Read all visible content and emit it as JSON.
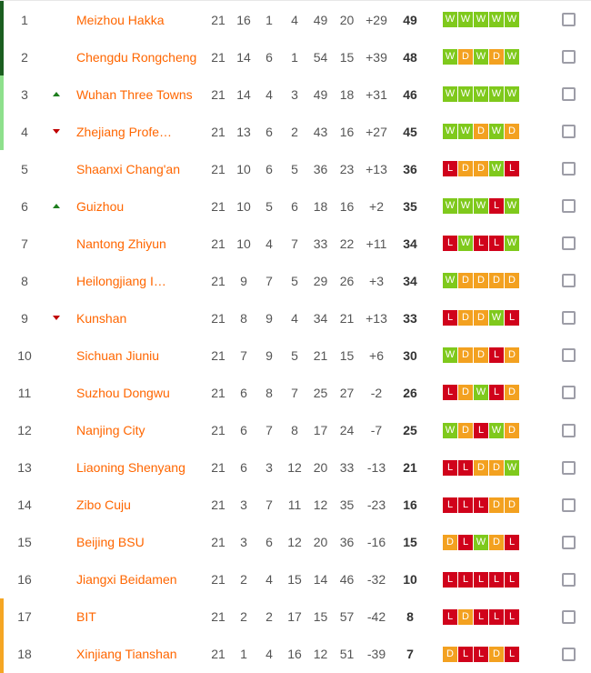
{
  "colors": {
    "team_link": "#ff6600",
    "number_text": "#555555",
    "points_text": "#333333",
    "win_badge": "#7fc91c",
    "draw_badge": "#f3a120",
    "loss_badge": "#d0021b",
    "promotion_zone": "#1b5e20",
    "playoff_zone": "#8ee08c",
    "relegation_zone": "#f5a623",
    "rank_up_arrow": "#1e7e1e",
    "rank_down_arrow": "#c00000",
    "checkbox_border": "#9d9da7",
    "top_border": "#e7e7e7"
  },
  "icons": {
    "rank_up": "rank-up-icon",
    "rank_down": "rank-down-icon",
    "favorite": "favorite-checkbox"
  },
  "table": {
    "rows": [
      {
        "pos": "1",
        "movement": "none",
        "team": "Meizhou Hakka",
        "played": "21",
        "wins": "16",
        "draws": "1",
        "losses": "4",
        "goals_for": "49",
        "goals_against": "20",
        "goal_diff": "+29",
        "points": "49",
        "form": [
          "W",
          "W",
          "W",
          "W",
          "W"
        ],
        "zone": "promotion"
      },
      {
        "pos": "2",
        "movement": "none",
        "team": "Chengdu Rongcheng",
        "played": "21",
        "wins": "14",
        "draws": "6",
        "losses": "1",
        "goals_for": "54",
        "goals_against": "15",
        "goal_diff": "+39",
        "points": "48",
        "form": [
          "W",
          "D",
          "W",
          "D",
          "W"
        ],
        "zone": "promotion"
      },
      {
        "pos": "3",
        "movement": "up",
        "team": "Wuhan Three Towns",
        "played": "21",
        "wins": "14",
        "draws": "4",
        "losses": "3",
        "goals_for": "49",
        "goals_against": "18",
        "goal_diff": "+31",
        "points": "46",
        "form": [
          "W",
          "W",
          "W",
          "W",
          "W"
        ],
        "zone": "playoff"
      },
      {
        "pos": "4",
        "movement": "down",
        "team": "Zhejiang Profe…",
        "played": "21",
        "wins": "13",
        "draws": "6",
        "losses": "2",
        "goals_for": "43",
        "goals_against": "16",
        "goal_diff": "+27",
        "points": "45",
        "form": [
          "W",
          "W",
          "D",
          "W",
          "D"
        ],
        "zone": "playoff"
      },
      {
        "pos": "5",
        "movement": "none",
        "team": "Shaanxi Chang'an",
        "played": "21",
        "wins": "10",
        "draws": "6",
        "losses": "5",
        "goals_for": "36",
        "goals_against": "23",
        "goal_diff": "+13",
        "points": "36",
        "form": [
          "L",
          "D",
          "D",
          "W",
          "L"
        ],
        "zone": "none"
      },
      {
        "pos": "6",
        "movement": "up",
        "team": "Guizhou",
        "played": "21",
        "wins": "10",
        "draws": "5",
        "losses": "6",
        "goals_for": "18",
        "goals_against": "16",
        "goal_diff": "+2",
        "points": "35",
        "form": [
          "W",
          "W",
          "W",
          "L",
          "W"
        ],
        "zone": "none"
      },
      {
        "pos": "7",
        "movement": "none",
        "team": "Nantong Zhiyun",
        "played": "21",
        "wins": "10",
        "draws": "4",
        "losses": "7",
        "goals_for": "33",
        "goals_against": "22",
        "goal_diff": "+11",
        "points": "34",
        "form": [
          "L",
          "W",
          "L",
          "L",
          "W"
        ],
        "zone": "none"
      },
      {
        "pos": "8",
        "movement": "none",
        "team": "Heilongjiang I…",
        "played": "21",
        "wins": "9",
        "draws": "7",
        "losses": "5",
        "goals_for": "29",
        "goals_against": "26",
        "goal_diff": "+3",
        "points": "34",
        "form": [
          "W",
          "D",
          "D",
          "D",
          "D"
        ],
        "zone": "none"
      },
      {
        "pos": "9",
        "movement": "down",
        "team": "Kunshan",
        "played": "21",
        "wins": "8",
        "draws": "9",
        "losses": "4",
        "goals_for": "34",
        "goals_against": "21",
        "goal_diff": "+13",
        "points": "33",
        "form": [
          "L",
          "D",
          "D",
          "W",
          "L"
        ],
        "zone": "none"
      },
      {
        "pos": "10",
        "movement": "none",
        "team": "Sichuan Jiuniu",
        "played": "21",
        "wins": "7",
        "draws": "9",
        "losses": "5",
        "goals_for": "21",
        "goals_against": "15",
        "goal_diff": "+6",
        "points": "30",
        "form": [
          "W",
          "D",
          "D",
          "L",
          "D"
        ],
        "zone": "none"
      },
      {
        "pos": "11",
        "movement": "none",
        "team": "Suzhou Dongwu",
        "played": "21",
        "wins": "6",
        "draws": "8",
        "losses": "7",
        "goals_for": "25",
        "goals_against": "27",
        "goal_diff": "-2",
        "points": "26",
        "form": [
          "L",
          "D",
          "W",
          "L",
          "D"
        ],
        "zone": "none"
      },
      {
        "pos": "12",
        "movement": "none",
        "team": "Nanjing City",
        "played": "21",
        "wins": "6",
        "draws": "7",
        "losses": "8",
        "goals_for": "17",
        "goals_against": "24",
        "goal_diff": "-7",
        "points": "25",
        "form": [
          "W",
          "D",
          "L",
          "W",
          "D"
        ],
        "zone": "none"
      },
      {
        "pos": "13",
        "movement": "none",
        "team": "Liaoning Shenyang",
        "played": "21",
        "wins": "6",
        "draws": "3",
        "losses": "12",
        "goals_for": "20",
        "goals_against": "33",
        "goal_diff": "-13",
        "points": "21",
        "form": [
          "L",
          "L",
          "D",
          "D",
          "W"
        ],
        "zone": "none"
      },
      {
        "pos": "14",
        "movement": "none",
        "team": "Zibo Cuju",
        "played": "21",
        "wins": "3",
        "draws": "7",
        "losses": "11",
        "goals_for": "12",
        "goals_against": "35",
        "goal_diff": "-23",
        "points": "16",
        "form": [
          "L",
          "L",
          "L",
          "D",
          "D"
        ],
        "zone": "none"
      },
      {
        "pos": "15",
        "movement": "none",
        "team": "Beijing BSU",
        "played": "21",
        "wins": "3",
        "draws": "6",
        "losses": "12",
        "goals_for": "20",
        "goals_against": "36",
        "goal_diff": "-16",
        "points": "15",
        "form": [
          "D",
          "L",
          "W",
          "D",
          "L"
        ],
        "zone": "none"
      },
      {
        "pos": "16",
        "movement": "none",
        "team": "Jiangxi Beidamen",
        "played": "21",
        "wins": "2",
        "draws": "4",
        "losses": "15",
        "goals_for": "14",
        "goals_against": "46",
        "goal_diff": "-32",
        "points": "10",
        "form": [
          "L",
          "L",
          "L",
          "L",
          "L"
        ],
        "zone": "none"
      },
      {
        "pos": "17",
        "movement": "none",
        "team": "BIT",
        "played": "21",
        "wins": "2",
        "draws": "2",
        "losses": "17",
        "goals_for": "15",
        "goals_against": "57",
        "goal_diff": "-42",
        "points": "8",
        "form": [
          "L",
          "D",
          "L",
          "L",
          "L"
        ],
        "zone": "relegation"
      },
      {
        "pos": "18",
        "movement": "none",
        "team": "Xinjiang Tianshan",
        "played": "21",
        "wins": "1",
        "draws": "4",
        "losses": "16",
        "goals_for": "12",
        "goals_against": "51",
        "goal_diff": "-39",
        "points": "7",
        "form": [
          "D",
          "L",
          "L",
          "D",
          "L"
        ],
        "zone": "relegation"
      }
    ]
  }
}
